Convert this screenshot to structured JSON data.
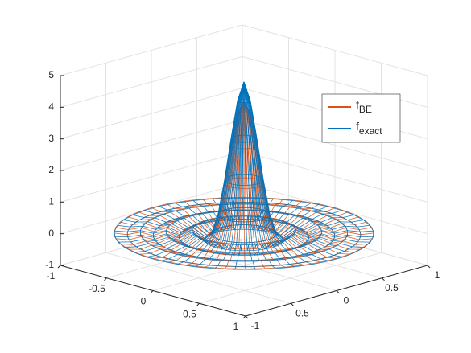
{
  "chart_data": {
    "type": "mesh3d",
    "x": [
      0,
      0.05,
      0.1,
      0.15,
      0.2,
      0.25,
      0.3,
      0.4,
      0.5,
      0.6,
      0.7,
      0.8,
      0.9,
      1
    ],
    "series": [
      {
        "name": "fBE",
        "color": "#d95319",
        "values": [
          4.2,
          3.8,
          2.8,
          1.6,
          0.6,
          0.0,
          -0.15,
          0.12,
          -0.12,
          0.08,
          -0.06,
          0.05,
          -0.03,
          0.02
        ]
      },
      {
        "name": "fexact",
        "color": "#0072bd",
        "values": [
          4.8,
          4.2,
          3.0,
          1.7,
          0.6,
          0.0,
          -0.2,
          0.1,
          -0.1,
          0.05,
          -0.05,
          0.03,
          -0.02,
          0
        ]
      }
    ],
    "xlim": [
      -1,
      1
    ],
    "xticks": [
      -1,
      -0.5,
      0,
      0.5,
      1
    ],
    "ylim": [
      -1,
      1
    ],
    "yticks": [
      -1,
      -0.5,
      0,
      0.5,
      1
    ],
    "zlim": [
      -1,
      5
    ],
    "zticks": [
      -1,
      0,
      1,
      2,
      3,
      4,
      5
    ],
    "grid": true,
    "legend": "upper right"
  }
}
